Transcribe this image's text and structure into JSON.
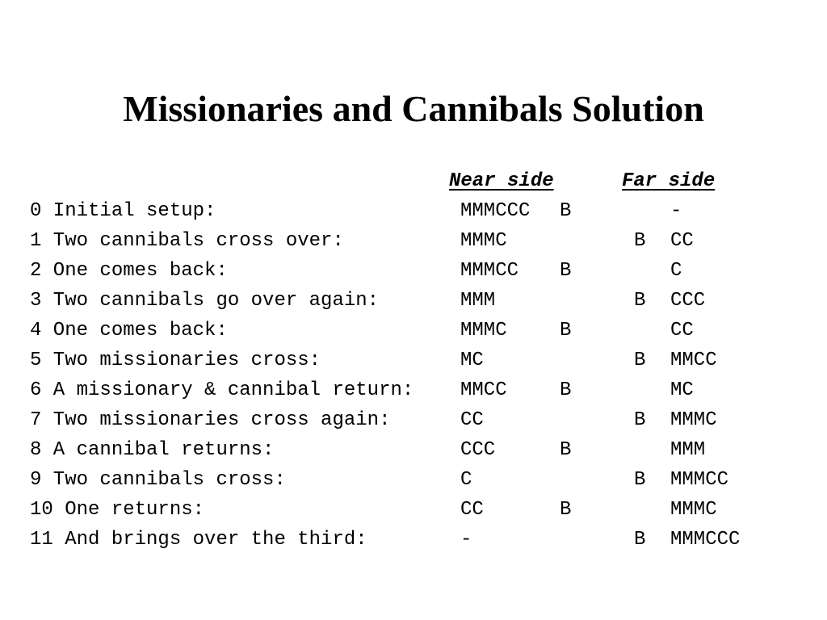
{
  "title": "Missionaries and Cannibals Solution",
  "headers": {
    "near": "Near side",
    "far": "Far side"
  },
  "rows": [
    {
      "step": "0 Initial setup:",
      "near": "MMMCCC",
      "near_boat": "B",
      "far": "-"
    },
    {
      "step": "1 Two cannibals cross over:",
      "near": "MMMC",
      "far_boat": "B",
      "far": "CC"
    },
    {
      "step": "2 One comes back:",
      "near": "MMMCC",
      "near_boat": "B",
      "far": "C"
    },
    {
      "step": "3 Two cannibals go over again:",
      "near": "MMM",
      "far_boat": "B",
      "far": "CCC"
    },
    {
      "step": "4 One comes back:",
      "near": "MMMC",
      "near_boat": "B",
      "far": "CC"
    },
    {
      "step": "5 Two missionaries cross:",
      "near": "MC",
      "far_boat": "B",
      "far": "MMCC"
    },
    {
      "step": "6 A missionary & cannibal return:",
      "near": "MMCC",
      "near_boat": "B",
      "far": "MC"
    },
    {
      "step": "7 Two missionaries cross again:",
      "near": "CC",
      "far_boat": "B",
      "far": "MMMC"
    },
    {
      "step": "8 A cannibal returns:",
      "near": "CCC",
      "near_boat": "B",
      "far": "MMM"
    },
    {
      "step": "9 Two cannibals cross:",
      "near": "C",
      "far_boat": "B",
      "far": "MMMCC"
    },
    {
      "step": "10 One returns:",
      "near": "CC",
      "near_boat": "B",
      "far": "MMMC"
    },
    {
      "step": "11 And brings over the third:",
      "near": "-",
      "far_boat": "B",
      "far": "MMMCCC"
    }
  ]
}
